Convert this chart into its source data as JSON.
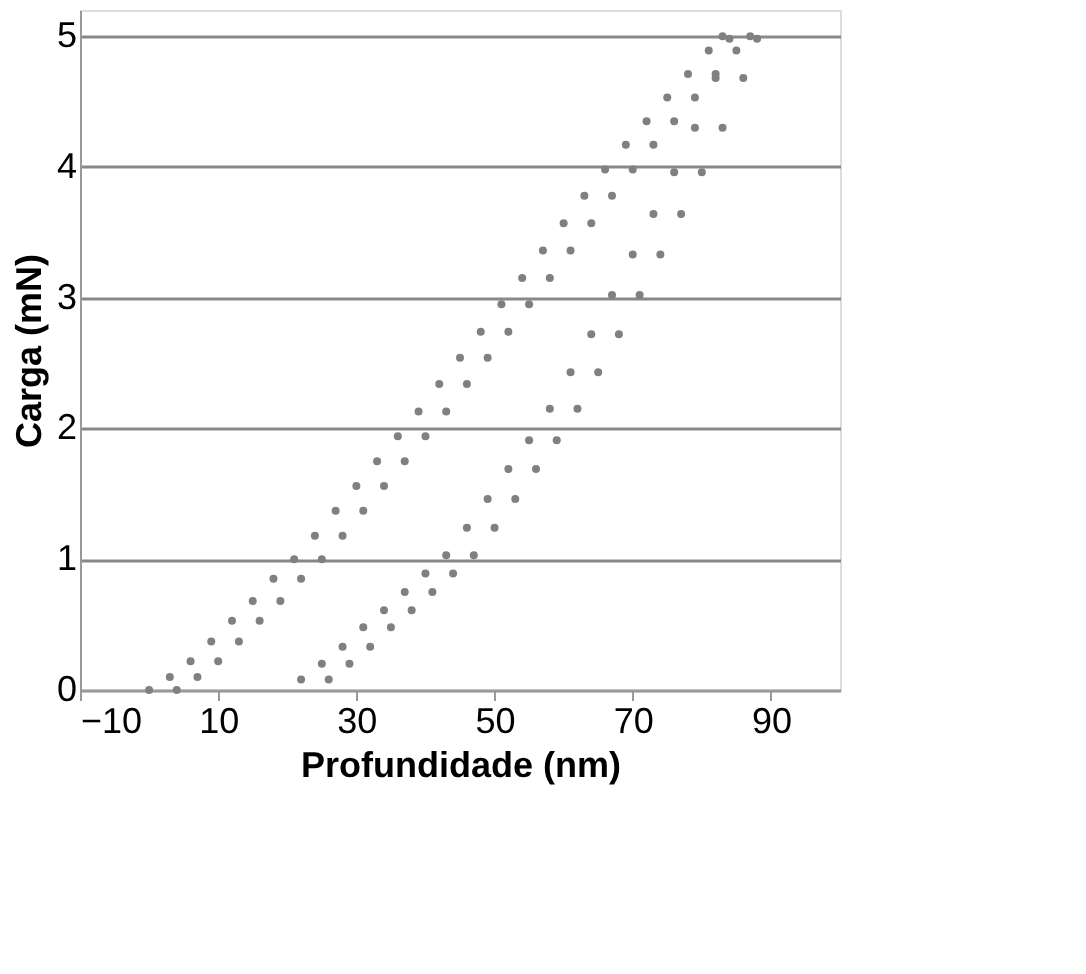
{
  "chart_data": {
    "type": "scatter",
    "xlabel": "Profundidade (nm)",
    "ylabel": "Carga (mN)",
    "xlim": [
      -10,
      100
    ],
    "xticks": [
      -10,
      10,
      30,
      50,
      70,
      90
    ],
    "ylim": [
      0,
      5.2
    ],
    "yticks": [
      0,
      1,
      2,
      3,
      4,
      5
    ],
    "grid": "y",
    "legend": false,
    "marker": "circle",
    "series": [
      {
        "color": "#808080",
        "x": [
          0,
          3,
          6,
          9,
          12,
          15,
          18,
          21,
          24,
          27,
          30,
          33,
          36,
          39,
          42,
          45,
          48,
          51,
          54,
          57,
          60,
          63,
          66,
          69,
          72,
          75,
          78,
          81,
          83
        ],
        "values": [
          0,
          0.1,
          0.22,
          0.37,
          0.53,
          0.68,
          0.85,
          1.0,
          1.18,
          1.37,
          1.56,
          1.75,
          1.94,
          2.13,
          2.34,
          2.54,
          2.74,
          2.95,
          3.15,
          3.36,
          3.57,
          3.78,
          3.98,
          4.17,
          4.35,
          4.53,
          4.71,
          4.89,
          5.0
        ]
      },
      {
        "color": "#808080",
        "x": [
          4,
          7,
          10,
          13,
          16,
          19,
          22,
          25,
          28,
          31,
          34,
          37,
          40,
          43,
          46,
          49,
          52,
          55,
          58,
          61,
          64,
          67,
          70,
          73,
          76,
          79,
          82,
          85,
          87
        ],
        "values": [
          0,
          0.1,
          0.22,
          0.37,
          0.53,
          0.68,
          0.85,
          1.0,
          1.18,
          1.37,
          1.56,
          1.75,
          1.94,
          2.13,
          2.34,
          2.54,
          2.74,
          2.95,
          3.15,
          3.36,
          3.57,
          3.78,
          3.98,
          4.17,
          4.35,
          4.53,
          4.71,
          4.89,
          5.0
        ]
      },
      {
        "color": "#808080",
        "x": [
          22,
          25,
          28,
          31,
          34,
          37,
          40,
          43,
          46,
          49,
          52,
          55,
          58,
          61,
          64,
          67,
          70,
          73,
          76,
          79,
          82,
          84
        ],
        "values": [
          0.08,
          0.2,
          0.33,
          0.48,
          0.61,
          0.75,
          0.89,
          1.03,
          1.24,
          1.46,
          1.69,
          1.91,
          2.15,
          2.43,
          2.72,
          3.02,
          3.33,
          3.64,
          3.96,
          4.3,
          4.68,
          4.98
        ]
      },
      {
        "color": "#808080",
        "x": [
          26,
          29,
          32,
          35,
          38,
          41,
          44,
          47,
          50,
          53,
          56,
          59,
          62,
          65,
          68,
          71,
          74,
          77,
          80,
          83,
          86,
          88
        ],
        "values": [
          0.08,
          0.2,
          0.33,
          0.48,
          0.61,
          0.75,
          0.89,
          1.03,
          1.24,
          1.46,
          1.69,
          1.91,
          2.15,
          2.43,
          2.72,
          3.02,
          3.33,
          3.64,
          3.96,
          4.3,
          4.68,
          4.98
        ]
      }
    ]
  }
}
